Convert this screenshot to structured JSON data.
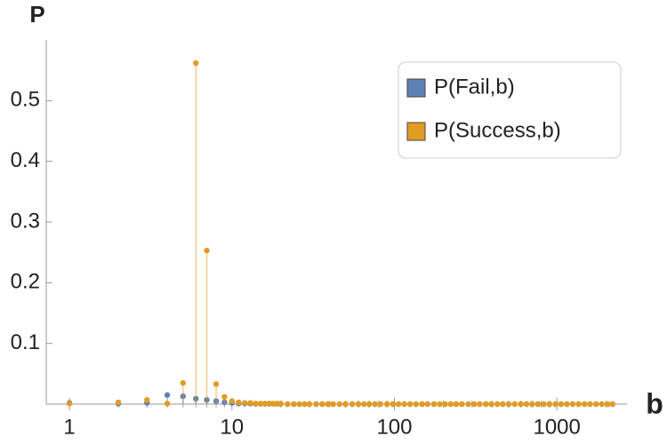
{
  "chart_data": {
    "type": "scatter",
    "ylabel": "P",
    "xlabel": "b",
    "xlog": true,
    "stems": true,
    "x": [
      1,
      2,
      3,
      4,
      5,
      6,
      7,
      8,
      9,
      10,
      11,
      12,
      13,
      14,
      15,
      16,
      17,
      18,
      19,
      20,
      22,
      24,
      26,
      28,
      30,
      33,
      36,
      39,
      42,
      46,
      50,
      55,
      60,
      65,
      70,
      76,
      82,
      90,
      98,
      106,
      115,
      125,
      136,
      148,
      160,
      175,
      190,
      205,
      222,
      240,
      260,
      285,
      310,
      335,
      365,
      395,
      430,
      465,
      505,
      550,
      600,
      650,
      705,
      765,
      830,
      900,
      980,
      1060,
      1150,
      1250,
      1360,
      1480,
      1600,
      1740,
      1890,
      2050,
      2200
    ],
    "series": [
      {
        "name": "P(Fail,b)",
        "color": "#5e81b5",
        "values": [
          0.002,
          0.001,
          0.002,
          0.015,
          0.013,
          0.009,
          0.007,
          0.005,
          0.003,
          0.002,
          0.001,
          0.001,
          0.001,
          0.0005,
          0.0005,
          0.0005,
          0.0005,
          0.0005,
          0.0005,
          0.0005,
          0,
          0,
          0,
          0,
          0,
          0,
          0,
          0,
          0,
          0,
          0,
          0,
          0,
          0,
          0,
          0,
          0,
          0,
          0,
          0,
          0,
          0,
          0,
          0,
          0,
          0,
          0,
          0,
          0,
          0,
          0,
          0,
          0,
          0,
          0,
          0,
          0,
          0,
          0,
          0,
          0,
          0,
          0,
          0,
          0,
          0,
          0,
          0,
          0,
          0,
          0,
          0,
          0,
          0,
          0,
          0,
          0
        ]
      },
      {
        "name": "P(Success,b)",
        "color": "#e19c24",
        "values": [
          0.001,
          0.003,
          0.007,
          0.001,
          0.035,
          0.562,
          0.253,
          0.033,
          0.012,
          0.005,
          0.003,
          0.002,
          0.002,
          0.001,
          0.001,
          0.001,
          0.001,
          0.001,
          0.001,
          0.001,
          0,
          0,
          0,
          0,
          0,
          0,
          0,
          0,
          0,
          0,
          0,
          0,
          0,
          0,
          0,
          0,
          0,
          0,
          0,
          0,
          0,
          0,
          0,
          0,
          0,
          0,
          0,
          0,
          0,
          0,
          0,
          0,
          0,
          0,
          0,
          0,
          0,
          0,
          0,
          0,
          0,
          0,
          0,
          0,
          0,
          0,
          0,
          0,
          0,
          0,
          0,
          0,
          0,
          0,
          0,
          0,
          0
        ]
      }
    ],
    "xlim": [
      0.72,
      2700
    ],
    "ylim": [
      0,
      0.6
    ],
    "xticks": [
      1,
      10,
      100,
      1000
    ],
    "xminorticks": [
      2,
      3,
      4,
      5,
      6,
      7,
      8,
      9,
      20,
      30,
      40,
      50,
      60,
      70,
      80,
      90,
      200,
      300,
      400,
      500,
      600,
      700,
      800,
      900,
      2000
    ],
    "yticks": [
      0.1,
      0.2,
      0.3,
      0.4,
      0.5
    ],
    "legend": "top-right"
  }
}
